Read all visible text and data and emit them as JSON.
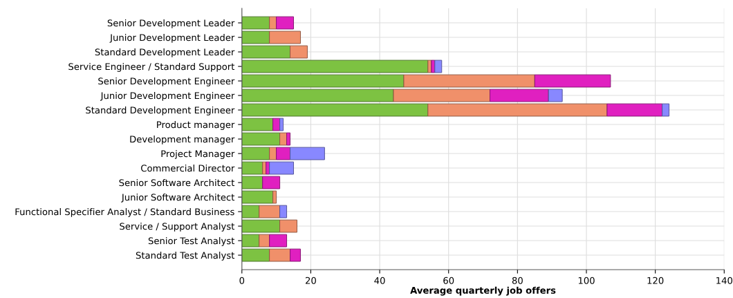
{
  "chart_data": {
    "type": "bar",
    "orientation": "horizontal",
    "stacked": true,
    "xlabel": "Average quarterly job offers",
    "categories": [
      "Senior Development Leader",
      "Junior Development Leader",
      "Standard Development Leader",
      "Service Engineer / Standard Support",
      "Senior Development Engineer",
      "Junior Development Engineer",
      "Standard Development Engineer",
      "Product manager",
      "Development manager",
      "Project Manager",
      "Commercial Director",
      "Senior Software Architect",
      "Junior Software Architect",
      "Functional Specifier Analyst / Standard Business",
      "Service / Support Analyst",
      "Senior Test Analyst",
      "Standard Test Analyst"
    ],
    "series": [
      {
        "color": "#7dc242",
        "values": [
          8,
          8,
          14,
          54,
          47,
          44,
          54,
          9,
          11,
          8,
          6,
          6,
          9,
          5,
          11,
          5,
          8
        ]
      },
      {
        "color": "#f0906a",
        "values": [
          2,
          9,
          5,
          1,
          38,
          28,
          52,
          0,
          2,
          2,
          1,
          0,
          1,
          6,
          5,
          3,
          6
        ]
      },
      {
        "color": "#e020c0",
        "values": [
          5,
          0,
          0,
          1,
          22,
          17,
          16,
          2,
          1,
          4,
          1,
          5,
          0,
          0,
          0,
          5,
          3
        ]
      },
      {
        "color": "#8888ff",
        "values": [
          0,
          0,
          0,
          2,
          0,
          4,
          2,
          1,
          0,
          10,
          7,
          0,
          0,
          2,
          0,
          0,
          0
        ]
      }
    ],
    "xlim": [
      0,
      140
    ],
    "xticks": [
      0,
      20,
      40,
      60,
      80,
      100,
      120,
      140
    ],
    "grid": true
  }
}
